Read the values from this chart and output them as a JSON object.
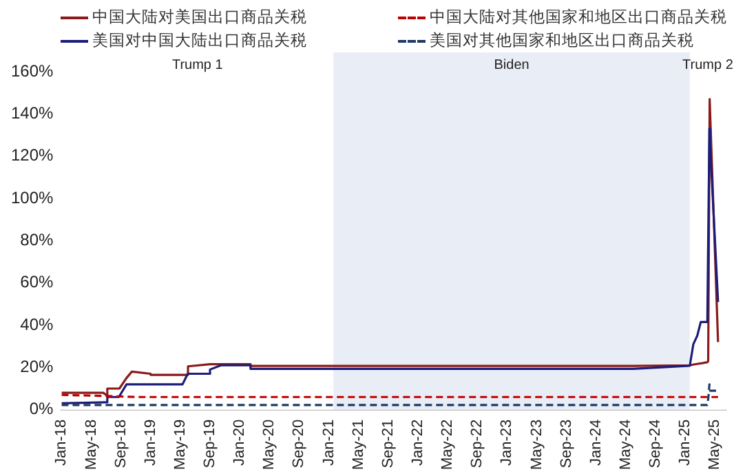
{
  "chart_data": {
    "type": "line",
    "series": [
      {
        "name": "中国大陆对美国出口商品关税",
        "color": "#8b1a1a",
        "line_style": "solid",
        "x": [
          "2018-01-01",
          "2018-06-20",
          "2018-07-01",
          "2018-07-06",
          "2018-08-25",
          "2018-09-24",
          "2018-10-15",
          "2018-12-31",
          "2019-01-01",
          "2019-06-01",
          "2019-06-02",
          "2019-09-01",
          "2020-02-14",
          "2020-02-15",
          "2021-06-01",
          "2024-06-01",
          "2025-01-20",
          "2025-02-10",
          "2025-03-10",
          "2025-04-01",
          "2025-04-04",
          "2025-04-10",
          "2025-05-14"
        ],
        "values": [
          8,
          8,
          7,
          10,
          10,
          15,
          18,
          17,
          16.5,
          16.5,
          20.5,
          21.5,
          21.5,
          20.7,
          20.7,
          20.7,
          21,
          21.5,
          22,
          22.5,
          23,
          147,
          32
        ]
      },
      {
        "name": "美国对中国大陆出口商品关税",
        "color": "#1c1c7a",
        "line_style": "solid",
        "x": [
          "2018-01-01",
          "2018-07-01",
          "2018-07-06",
          "2018-08-23",
          "2018-09-24",
          "2019-05-10",
          "2019-06-01",
          "2019-08-31",
          "2019-09-01",
          "2019-10-15",
          "2020-02-14",
          "2020-02-15",
          "2024-06-01",
          "2025-01-20",
          "2025-02-04",
          "2025-02-20",
          "2025-03-04",
          "2025-03-31",
          "2025-04-09",
          "2025-04-12",
          "2025-05-14"
        ],
        "values": [
          3,
          3.5,
          6,
          6,
          12,
          12,
          17,
          17,
          19,
          21,
          21,
          19.3,
          19.3,
          20.8,
          31,
          35,
          41.5,
          41.5,
          133,
          125,
          51
        ]
      },
      {
        "name": "中国大陆对其他国家和地区出口商品关税",
        "color": "#c00000",
        "line_style": "dashed",
        "x": [
          "2018-01-01",
          "2018-07-01",
          "2018-11-01",
          "2025-05-14"
        ],
        "values": [
          7,
          6.5,
          6,
          6
        ]
      },
      {
        "name": "美国对其他国家和地区出口商品关税",
        "color": "#1f3864",
        "line_style": "dashed",
        "x": [
          "2018-01-01",
          "2025-03-31",
          "2025-04-05",
          "2025-04-09",
          "2025-04-12",
          "2025-05-14"
        ],
        "values": [
          2.2,
          2.2,
          6,
          12,
          9,
          9
        ]
      }
    ],
    "xlim": [
      "2018-01-01",
      "2025-06-15"
    ],
    "xticks": [
      {
        "value": "2018-01",
        "label": "Jan-18"
      },
      {
        "value": "2018-05",
        "label": "May-18"
      },
      {
        "value": "2018-09",
        "label": "Sep-18"
      },
      {
        "value": "2019-01",
        "label": "Jan-19"
      },
      {
        "value": "2019-05",
        "label": "May-19"
      },
      {
        "value": "2019-09",
        "label": "Sep-19"
      },
      {
        "value": "2020-01",
        "label": "Jan-20"
      },
      {
        "value": "2020-05",
        "label": "May-20"
      },
      {
        "value": "2020-09",
        "label": "Sep-20"
      },
      {
        "value": "2021-01",
        "label": "Jan-21"
      },
      {
        "value": "2021-05",
        "label": "May-21"
      },
      {
        "value": "2021-09",
        "label": "Sep-21"
      },
      {
        "value": "2022-01",
        "label": "Jan-22"
      },
      {
        "value": "2022-05",
        "label": "May-22"
      },
      {
        "value": "2022-09",
        "label": "Sep-22"
      },
      {
        "value": "2023-01",
        "label": "Jan-23"
      },
      {
        "value": "2023-05",
        "label": "May-23"
      },
      {
        "value": "2023-09",
        "label": "Sep-23"
      },
      {
        "value": "2024-01",
        "label": "Jan-24"
      },
      {
        "value": "2024-05",
        "label": "May-24"
      },
      {
        "value": "2024-09",
        "label": "Sep-24"
      },
      {
        "value": "2025-01",
        "label": "Jan-25"
      },
      {
        "value": "2025-05",
        "label": "May-25"
      }
    ],
    "ylim": [
      0,
      160
    ],
    "yticks": [
      {
        "value": 0,
        "label": "0%"
      },
      {
        "value": 20,
        "label": "20%"
      },
      {
        "value": 40,
        "label": "40%"
      },
      {
        "value": 60,
        "label": "60%"
      },
      {
        "value": 80,
        "label": "80%"
      },
      {
        "value": 100,
        "label": "100%"
      },
      {
        "value": 120,
        "label": "120%"
      },
      {
        "value": 140,
        "label": "140%"
      },
      {
        "value": 160,
        "label": "160%"
      }
    ],
    "bands": [
      {
        "axis": "x",
        "from": "2018-01-01",
        "to": "2021-01-20",
        "label": "Trump 1",
        "color": "#ffffff"
      },
      {
        "axis": "x",
        "from": "2021-01-20",
        "to": "2025-01-20",
        "label": "Biden",
        "color": "#e9edf5"
      },
      {
        "axis": "x",
        "from": "2025-01-20",
        "to": "2025-06-15",
        "label": "Trump 2",
        "color": "#ffffff"
      }
    ],
    "grid": false,
    "legend": "top",
    "marker": "none"
  }
}
